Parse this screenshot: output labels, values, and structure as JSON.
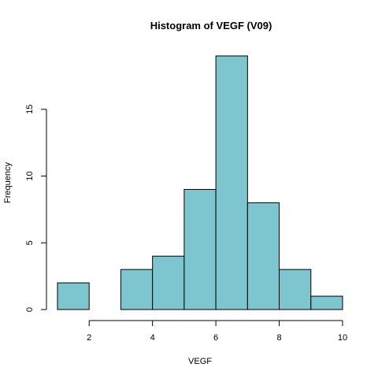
{
  "chart_data": {
    "type": "bar",
    "title": "Histogram of VEGF (V09)",
    "xlabel": "VEGF",
    "ylabel": "Frequency",
    "bins": [
      {
        "x0": 1,
        "x1": 2,
        "count": 2
      },
      {
        "x0": 2,
        "x1": 3,
        "count": 0
      },
      {
        "x0": 3,
        "x1": 4,
        "count": 3
      },
      {
        "x0": 4,
        "x1": 5,
        "count": 4
      },
      {
        "x0": 5,
        "x1": 6,
        "count": 9
      },
      {
        "x0": 6,
        "x1": 7,
        "count": 19
      },
      {
        "x0": 7,
        "x1": 8,
        "count": 8
      },
      {
        "x0": 8,
        "x1": 9,
        "count": 3
      },
      {
        "x0": 9,
        "x1": 10,
        "count": 1
      }
    ],
    "xlim": [
      1,
      10
    ],
    "ylim": [
      0,
      19
    ],
    "x_ticks": [
      2,
      4,
      6,
      8,
      10
    ],
    "y_ticks": [
      0,
      5,
      10,
      15
    ],
    "bar_color": "#7ec6cf",
    "edge_color": "#000000",
    "grid": false
  }
}
